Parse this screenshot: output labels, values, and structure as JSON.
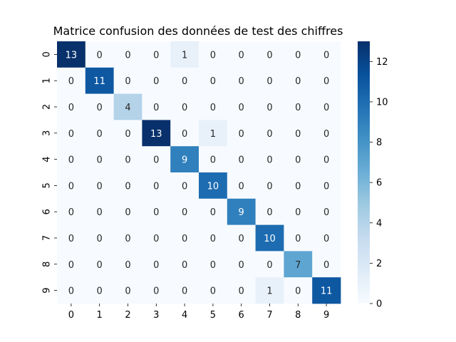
{
  "chart_data": {
    "type": "heatmap",
    "title": "Matrice confusion des données de test des chiffres",
    "xlabel": "",
    "ylabel": "",
    "x_categories": [
      "0",
      "1",
      "2",
      "3",
      "4",
      "5",
      "6",
      "7",
      "8",
      "9"
    ],
    "y_categories": [
      "0",
      "1",
      "2",
      "3",
      "4",
      "5",
      "6",
      "7",
      "8",
      "9"
    ],
    "values": [
      [
        13,
        0,
        0,
        0,
        1,
        0,
        0,
        0,
        0,
        0
      ],
      [
        0,
        11,
        0,
        0,
        0,
        0,
        0,
        0,
        0,
        0
      ],
      [
        0,
        0,
        4,
        0,
        0,
        0,
        0,
        0,
        0,
        0
      ],
      [
        0,
        0,
        0,
        13,
        0,
        1,
        0,
        0,
        0,
        0
      ],
      [
        0,
        0,
        0,
        0,
        9,
        0,
        0,
        0,
        0,
        0
      ],
      [
        0,
        0,
        0,
        0,
        0,
        10,
        0,
        0,
        0,
        0
      ],
      [
        0,
        0,
        0,
        0,
        0,
        0,
        9,
        0,
        0,
        0
      ],
      [
        0,
        0,
        0,
        0,
        0,
        0,
        0,
        10,
        0,
        0
      ],
      [
        0,
        0,
        0,
        0,
        0,
        0,
        0,
        0,
        7,
        0
      ],
      [
        0,
        0,
        0,
        0,
        0,
        0,
        0,
        1,
        0,
        11
      ]
    ],
    "colormap": "Blues",
    "colorbar": {
      "range": [
        0,
        13
      ],
      "ticks": [
        "0",
        "2",
        "4",
        "6",
        "8",
        "10",
        "12"
      ]
    },
    "annotations": true,
    "grid": false
  }
}
